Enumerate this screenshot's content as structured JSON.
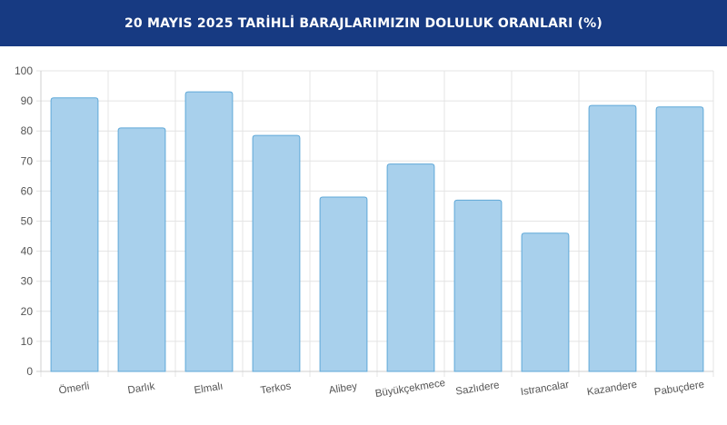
{
  "header": {
    "title": "20 MAYIS 2025 TARİHLİ BARAJLARIMIZIN DOLULUK ORANLARI (%)"
  },
  "colors": {
    "header_bg": "#173a82",
    "bar_fill": "#a8d0ec",
    "bar_stroke": "#5fa8d8"
  },
  "chart_data": {
    "type": "bar",
    "title": "20 MAYIS 2025 TARİHLİ BARAJLARIMIZIN DOLULUK ORANLARI (%)",
    "categories": [
      "Ömerli",
      "Darlık",
      "Elmalı",
      "Terkos",
      "Alibey",
      "Büyükçekmece",
      "Sazlıdere",
      "Istrancalar",
      "Kazandere",
      "Pabuçdere"
    ],
    "values": [
      91,
      81,
      93,
      78.5,
      58,
      69,
      57,
      46,
      88.5,
      88
    ],
    "ylim": [
      0,
      100
    ],
    "yticks": [
      0,
      10,
      20,
      30,
      40,
      50,
      60,
      70,
      80,
      90,
      100
    ],
    "xlabel": "",
    "ylabel": "",
    "grid": true,
    "legend": "none"
  }
}
